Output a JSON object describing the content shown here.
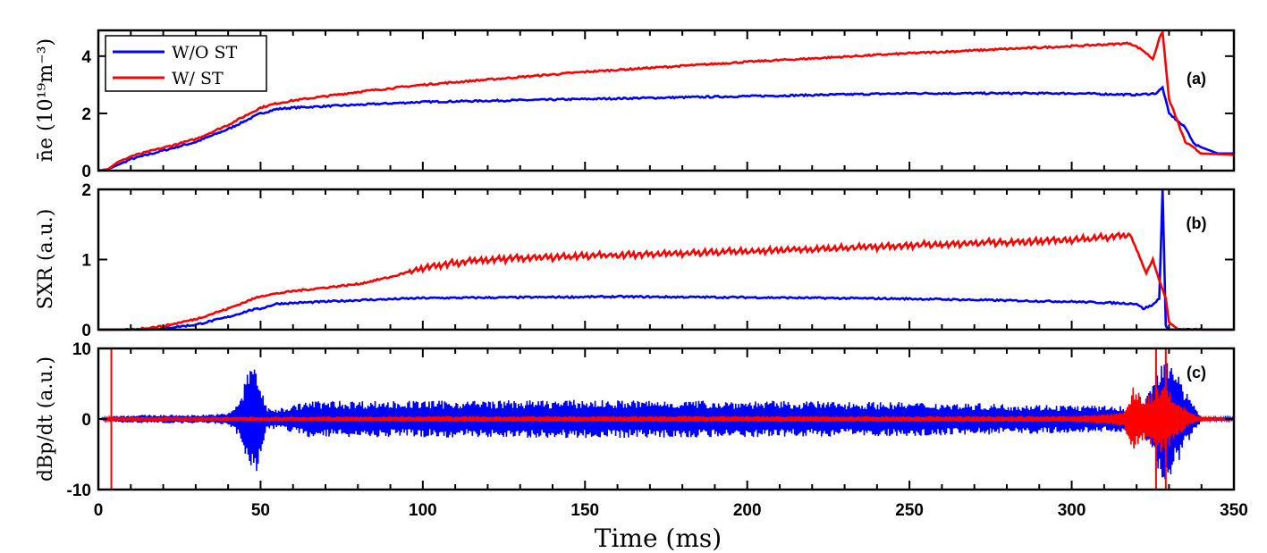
{
  "figure": {
    "xlabel": "Time (ms)",
    "x_ticks": [
      0,
      50,
      100,
      150,
      200,
      250,
      300,
      350
    ],
    "legend": [
      {
        "label": "W/O ST",
        "color": "#0000ff"
      },
      {
        "label": "W/ ST",
        "color": "#ff0000"
      }
    ]
  },
  "chart_data": [
    {
      "type": "line",
      "panel": "(a)",
      "ylabel": "n̄e (10¹⁹m⁻³)",
      "xlim": [
        0,
        350
      ],
      "ylim": [
        0,
        4.9
      ],
      "y_ticks": [
        0,
        2,
        4
      ],
      "grid": false,
      "legend_position": "top-left",
      "series": [
        {
          "name": "W/O ST",
          "color": "#0000ff",
          "x": [
            0,
            3,
            6,
            10,
            20,
            30,
            40,
            50,
            55,
            60,
            80,
            100,
            150,
            200,
            250,
            300,
            320,
            326,
            328,
            330,
            335,
            338,
            345,
            350
          ],
          "y": [
            0,
            0.05,
            0.2,
            0.4,
            0.7,
            1.0,
            1.45,
            2.0,
            2.15,
            2.2,
            2.3,
            2.4,
            2.5,
            2.6,
            2.7,
            2.7,
            2.65,
            2.7,
            2.9,
            2.0,
            1.5,
            0.9,
            0.6,
            0.6
          ]
        },
        {
          "name": "W/ ST",
          "color": "#ff0000",
          "x": [
            0,
            3,
            6,
            10,
            20,
            30,
            40,
            50,
            55,
            60,
            80,
            100,
            150,
            200,
            250,
            300,
            318,
            322,
            325,
            327,
            328,
            330,
            335,
            340,
            350
          ],
          "y": [
            0,
            0.05,
            0.3,
            0.5,
            0.8,
            1.1,
            1.6,
            2.2,
            2.35,
            2.45,
            2.75,
            3.0,
            3.45,
            3.8,
            4.1,
            4.35,
            4.45,
            4.2,
            3.9,
            4.6,
            4.85,
            2.5,
            1.0,
            0.6,
            0.55
          ]
        }
      ]
    },
    {
      "type": "line",
      "panel": "(b)",
      "ylabel": "SXR (a.u.)",
      "xlim": [
        0,
        350
      ],
      "ylim": [
        0,
        2
      ],
      "y_ticks": [
        0,
        1,
        2
      ],
      "grid": false,
      "series": [
        {
          "name": "W/O ST",
          "color": "#0000ff",
          "x": [
            0,
            15,
            20,
            30,
            40,
            47,
            50,
            55,
            60,
            80,
            100,
            130,
            160,
            200,
            250,
            300,
            320,
            322,
            325,
            327,
            328,
            329,
            330,
            333,
            350
          ],
          "y": [
            0,
            0,
            0.02,
            0.07,
            0.18,
            0.28,
            0.3,
            0.37,
            0.38,
            0.42,
            0.45,
            0.46,
            0.47,
            0.46,
            0.44,
            0.4,
            0.37,
            0.3,
            0.35,
            0.45,
            2.0,
            0.05,
            0.0,
            0.0,
            0.0
          ]
        },
        {
          "name": "W/ ST",
          "color": "#ff0000",
          "x": [
            0,
            10,
            20,
            30,
            40,
            50,
            60,
            70,
            80,
            90,
            100,
            110,
            120,
            130,
            150,
            200,
            250,
            300,
            318,
            320,
            323,
            325,
            327,
            329,
            330,
            333,
            350
          ],
          "y": [
            0,
            0.0,
            0.05,
            0.15,
            0.3,
            0.48,
            0.55,
            0.6,
            0.65,
            0.75,
            0.88,
            0.95,
            1.0,
            1.02,
            1.05,
            1.12,
            1.2,
            1.28,
            1.35,
            1.15,
            0.8,
            1.0,
            0.7,
            0.45,
            0.1,
            0.0,
            0.0
          ]
        }
      ]
    },
    {
      "type": "line",
      "panel": "(c)",
      "ylabel": "dBp/dt (a.u.)",
      "xlim": [
        0,
        350
      ],
      "ylim": [
        -10,
        10
      ],
      "y_ticks": [
        -10,
        0,
        10
      ],
      "grid": false,
      "series": [
        {
          "name": "W/O ST",
          "color": "#0000ff",
          "envelope": {
            "x": [
              0,
              5,
              15,
              20,
              30,
              40,
              44,
              46,
              48,
              50,
              52,
              55,
              60,
              65,
              100,
              150,
              200,
              250,
              300,
              318,
              322,
              326,
              328,
              330,
              332,
              335,
              340,
              350
            ],
            "amp": [
              0,
              0.5,
              0.6,
              0.6,
              0.6,
              0.8,
              3.0,
              7.0,
              9.0,
              5.0,
              1.5,
              1.5,
              2.0,
              2.6,
              2.6,
              2.7,
              2.6,
              2.4,
              2.0,
              1.8,
              2.0,
              6.0,
              10.0,
              10.0,
              7.0,
              4.0,
              0.3,
              0.2
            ]
          }
        },
        {
          "name": "W/ ST",
          "color": "#ff0000",
          "envelope": {
            "x": [
              0,
              5,
              10,
              20,
              50,
              100,
              200,
              300,
              316,
              319,
              322,
              325,
              328,
              330,
              333,
              336,
              340,
              350
            ],
            "amp": [
              0,
              0.3,
              0.3,
              0.3,
              0.3,
              0.4,
              0.4,
              0.4,
              1.0,
              5.0,
              3.0,
              4.0,
              5.0,
              4.0,
              2.5,
              1.0,
              0.2,
              0.1
            ]
          },
          "vertical_spikes_x": [
            4,
            326,
            329
          ]
        }
      ]
    }
  ]
}
